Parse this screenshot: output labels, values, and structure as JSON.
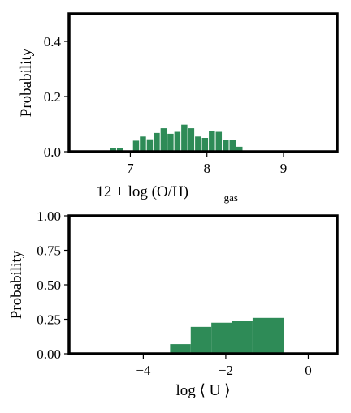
{
  "colors": {
    "bar": "#2e8b57",
    "frame": "#000000"
  },
  "chart_data": [
    {
      "type": "bar",
      "xlabel": "12 + log (O/H)",
      "xlabel_subscript": "gas",
      "ylabel": "Probability",
      "xlim": [
        6.2,
        9.7
      ],
      "ylim": [
        0,
        0.5
      ],
      "xticks": [
        7,
        8,
        9
      ],
      "yticks": [
        0.0,
        0.2,
        0.4
      ],
      "ytick_labels": [
        "0.0",
        "0.2",
        "0.4"
      ],
      "bin_width": 0.09,
      "bars": [
        {
          "x": 6.78,
          "y": 0.012
        },
        {
          "x": 6.87,
          "y": 0.012
        },
        {
          "x": 7.08,
          "y": 0.04
        },
        {
          "x": 7.17,
          "y": 0.055
        },
        {
          "x": 7.26,
          "y": 0.045
        },
        {
          "x": 7.35,
          "y": 0.068
        },
        {
          "x": 7.44,
          "y": 0.085
        },
        {
          "x": 7.53,
          "y": 0.065
        },
        {
          "x": 7.62,
          "y": 0.072
        },
        {
          "x": 7.71,
          "y": 0.098
        },
        {
          "x": 7.8,
          "y": 0.085
        },
        {
          "x": 7.89,
          "y": 0.055
        },
        {
          "x": 7.98,
          "y": 0.05
        },
        {
          "x": 8.07,
          "y": 0.075
        },
        {
          "x": 8.16,
          "y": 0.072
        },
        {
          "x": 8.25,
          "y": 0.042
        },
        {
          "x": 8.34,
          "y": 0.042
        },
        {
          "x": 8.43,
          "y": 0.018
        }
      ]
    },
    {
      "type": "bar",
      "xlabel": "log ⟨ U ⟩",
      "ylabel": "Probability",
      "xlim": [
        -5.8,
        0.7
      ],
      "ylim": [
        0,
        1.0
      ],
      "xticks": [
        -4,
        -2,
        0
      ],
      "xtick_labels": [
        "−4",
        "−2",
        "0"
      ],
      "yticks": [
        0.0,
        0.25,
        0.5,
        0.75,
        1.0
      ],
      "ytick_labels": [
        "0.00",
        "0.25",
        "0.50",
        "0.75",
        "1.00"
      ],
      "bins": [
        {
          "x0": -3.35,
          "x1": -2.85,
          "y": 0.07
        },
        {
          "x0": -2.85,
          "x1": -2.35,
          "y": 0.195
        },
        {
          "x0": -2.35,
          "x1": -1.85,
          "y": 0.225
        },
        {
          "x0": -1.85,
          "x1": -1.35,
          "y": 0.24
        },
        {
          "x0": -1.35,
          "x1": -0.6,
          "y": 0.26
        }
      ]
    }
  ]
}
